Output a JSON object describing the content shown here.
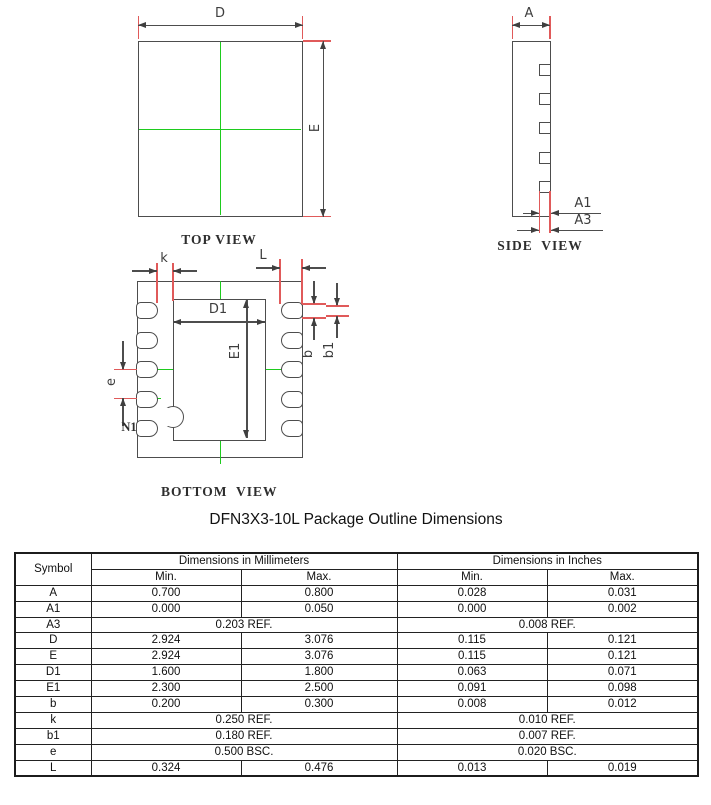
{
  "drawing": {
    "top_view": {
      "title": "TOP VIEW",
      "labels": {
        "d": "D",
        "e": "E"
      }
    },
    "side_view": {
      "title": "SIDE  VIEW",
      "labels": {
        "a": "A",
        "a1": "A1",
        "a3": "A3"
      }
    },
    "bottom_view": {
      "title": "BOTTOM  VIEW",
      "labels": {
        "k": "k",
        "l": "L",
        "d1": "D1",
        "e1": "E1",
        "b": "b",
        "b1": "b1",
        "e": "e",
        "n1": "N1"
      }
    },
    "colors": {
      "outline": "#4d4d4d",
      "centerline": "#1ecb1e",
      "extension_line": "#e05a5a"
    }
  },
  "table_title": "DFN3X3-10L Package Outline Dimensions",
  "table": {
    "header": {
      "symbol": "Symbol",
      "mm_group": "Dimensions in Millimeters",
      "in_group": "Dimensions in Inches",
      "min": "Min.",
      "max": "Max."
    },
    "rows": [
      {
        "symbol": "A",
        "mm_min": "0.700",
        "mm_max": "0.800",
        "in_min": "0.028",
        "in_max": "0.031"
      },
      {
        "symbol": "A1",
        "mm_min": "0.000",
        "mm_max": "0.050",
        "in_min": "0.000",
        "in_max": "0.002"
      },
      {
        "symbol": "A3",
        "mm_span": "0.203 REF.",
        "in_span": "0.008 REF."
      },
      {
        "symbol": "D",
        "mm_min": "2.924",
        "mm_max": "3.076",
        "in_min": "0.115",
        "in_max": "0.121"
      },
      {
        "symbol": "E",
        "mm_min": "2.924",
        "mm_max": "3.076",
        "in_min": "0.115",
        "in_max": "0.121"
      },
      {
        "symbol": "D1",
        "mm_min": "1.600",
        "mm_max": "1.800",
        "in_min": "0.063",
        "in_max": "0.071"
      },
      {
        "symbol": "E1",
        "mm_min": "2.300",
        "mm_max": "2.500",
        "in_min": "0.091",
        "in_max": "0.098"
      },
      {
        "symbol": "b",
        "mm_min": "0.200",
        "mm_max": "0.300",
        "in_min": "0.008",
        "in_max": "0.012"
      },
      {
        "symbol": "k",
        "mm_span": "0.250 REF.",
        "in_span": "0.010 REF."
      },
      {
        "symbol": "b1",
        "mm_span": "0.180 REF.",
        "in_span": "0.007 REF."
      },
      {
        "symbol": "e",
        "mm_span": "0.500 BSC.",
        "in_span": "0.020 BSC."
      },
      {
        "symbol": "L",
        "mm_min": "0.324",
        "mm_max": "0.476",
        "in_min": "0.013",
        "in_max": "0.019"
      }
    ]
  }
}
